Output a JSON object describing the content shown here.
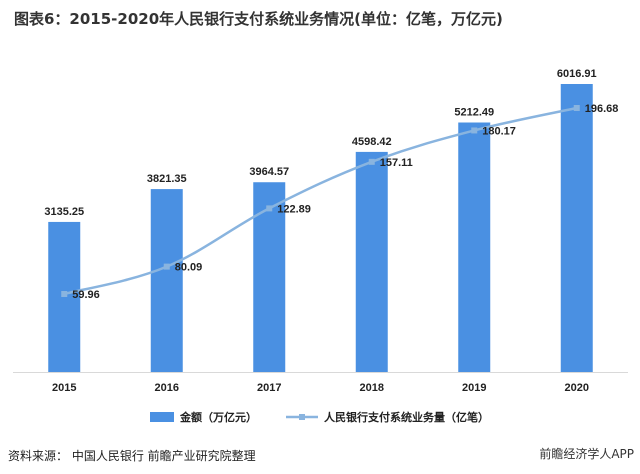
{
  "header": {
    "title": "图表6：2015-2020年人民银行支付系统业务情况(单位：亿笔，万亿元)"
  },
  "footer": {
    "source": "资料来源：  中国人民银行  前瞻产业研究院整理",
    "logo": "前瞻经济学人APP"
  },
  "colors": {
    "bar": "#4a90e2",
    "line": "#89b4df",
    "axis": "#d9d9d9",
    "text": "#222222"
  },
  "chart_data": {
    "type": "bar",
    "title": "图表6：2015-2020年人民银行支付系统业务情况(单位：亿笔，万亿元)",
    "categories": [
      "2015",
      "2016",
      "2017",
      "2018",
      "2019",
      "2020"
    ],
    "series": [
      {
        "name": "金额（万亿元）",
        "kind": "bar",
        "values": [
          3135.25,
          3821.35,
          3964.57,
          4598.42,
          5212.49,
          6016.91
        ],
        "labels": [
          "3135.25",
          "3821.35",
          "3964.57",
          "4598.42",
          "5212.49",
          "6016.91"
        ]
      },
      {
        "name": "人民银行支付系统业务量（亿笔）",
        "kind": "line",
        "values": [
          59.96,
          80.09,
          122.89,
          157.11,
          180.17,
          196.68
        ],
        "labels": [
          "59.96",
          "80.09",
          "122.89",
          "157.11",
          "180.17",
          "196.68"
        ]
      }
    ],
    "legend": [
      "金额（万亿元）",
      "人民银行支付系统业务量（亿笔）"
    ],
    "legend_position": "bottom",
    "bar_axis_range": [
      0,
      6500
    ],
    "line_axis_range": [
      0,
      250
    ],
    "grid": false
  }
}
